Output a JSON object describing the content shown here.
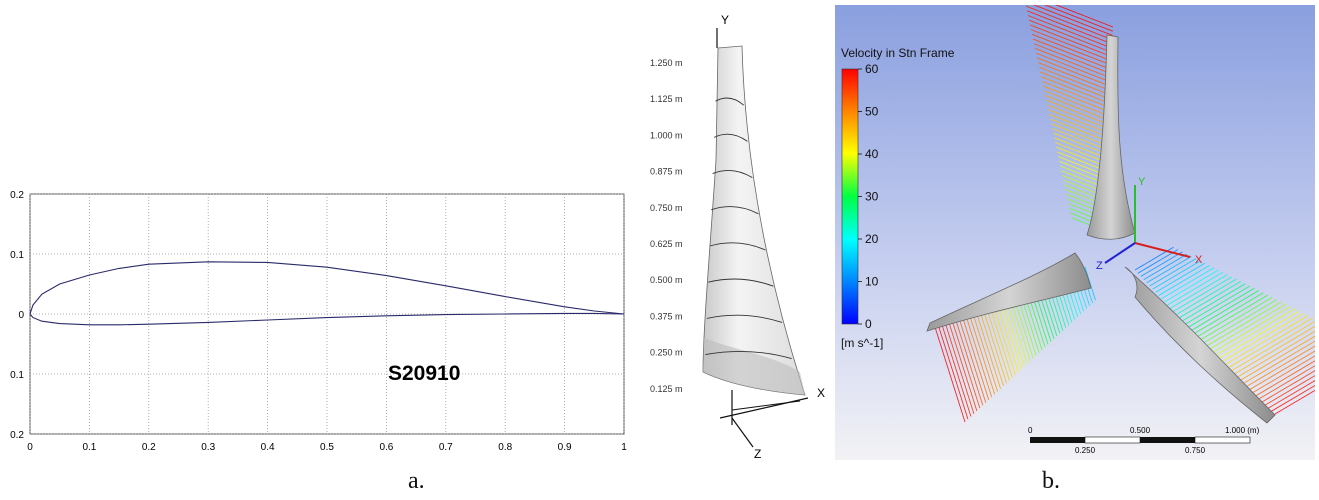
{
  "airfoil_plot": {
    "airfoil_name": "S20910",
    "x_ticks": [
      "0",
      "0.1",
      "0.2",
      "0.3",
      "0.4",
      "0.5",
      "0.6",
      "0.7",
      "0.8",
      "0.9",
      "1"
    ],
    "y_ticks": [
      "0.2",
      "0.1",
      "0",
      "0.1",
      "0.2"
    ]
  },
  "chart_data": {
    "type": "line",
    "title": "",
    "xlabel": "",
    "ylabel": "",
    "xlim": [
      0,
      1
    ],
    "ylim": [
      -0.2,
      0.2
    ],
    "grid": true,
    "annotations": [
      "S20910"
    ],
    "series": [
      {
        "x": [
          0,
          0.005,
          0.02,
          0.05,
          0.1,
          0.15,
          0.2,
          0.3,
          0.4,
          0.5,
          0.6,
          0.7,
          0.8,
          0.9,
          0.95,
          1.0
        ],
        "y": [
          0,
          0.015,
          0.033,
          0.05,
          0.065,
          0.076,
          0.083,
          0.087,
          0.086,
          0.078,
          0.064,
          0.047,
          0.029,
          0.012,
          0.005,
          0
        ]
      },
      {
        "x": [
          0,
          0.005,
          0.02,
          0.05,
          0.1,
          0.15,
          0.2,
          0.3,
          0.4,
          0.5,
          0.6,
          0.7,
          0.8,
          0.9,
          0.95,
          1.0
        ],
        "y": [
          0,
          -0.006,
          -0.012,
          -0.016,
          -0.018,
          -0.018,
          -0.017,
          -0.014,
          -0.01,
          -0.006,
          -0.003,
          -0.001,
          0.0,
          0.001,
          0.001,
          0
        ]
      }
    ]
  },
  "blade_model": {
    "stations": [
      "1.250 m",
      "1.125 m",
      "1.000 m",
      "0.875 m",
      "0.750 m",
      "0.625 m",
      "0.500 m",
      "0.375 m",
      "0.250 m",
      "0.125 m"
    ],
    "axis_labels": {
      "y": "Y",
      "x": "X",
      "z": "Z"
    }
  },
  "cfd_view": {
    "legend_title": "Velocity in Stn Frame",
    "legend_ticks": [
      "60",
      "50",
      "40",
      "30",
      "20",
      "10",
      "0"
    ],
    "legend_unit": "[m s^-1]",
    "axis_labels": {
      "y": "Y",
      "x": "X",
      "z": "Z"
    },
    "scale_top": [
      "0",
      "0.500",
      "1.000  (m)"
    ],
    "scale_bottom": [
      "0.250",
      "0.750"
    ],
    "colors": {
      "background_top": "#8a9fdf",
      "background_bottom": "#f2f2f5",
      "blade": "#b9b9b9"
    }
  },
  "captions": {
    "a": "a.",
    "b": "b."
  }
}
